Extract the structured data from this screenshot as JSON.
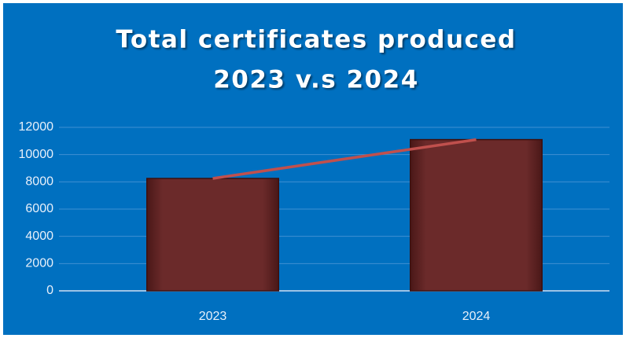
{
  "chart_data": {
    "type": "bar",
    "title": [
      "Total certificates produced",
      "2023 v.s 2024"
    ],
    "categories": [
      "2023",
      "2024"
    ],
    "series": [
      {
        "type": "bar",
        "color": "#6b2a2a",
        "values": [
          8250,
          11100
        ]
      },
      {
        "type": "line",
        "color": "#c0504d",
        "values": [
          8250,
          11100
        ]
      }
    ],
    "ylim": [
      0,
      12000
    ],
    "yticks": [
      0,
      2000,
      4000,
      6000,
      8000,
      10000,
      12000
    ],
    "grid": true
  }
}
